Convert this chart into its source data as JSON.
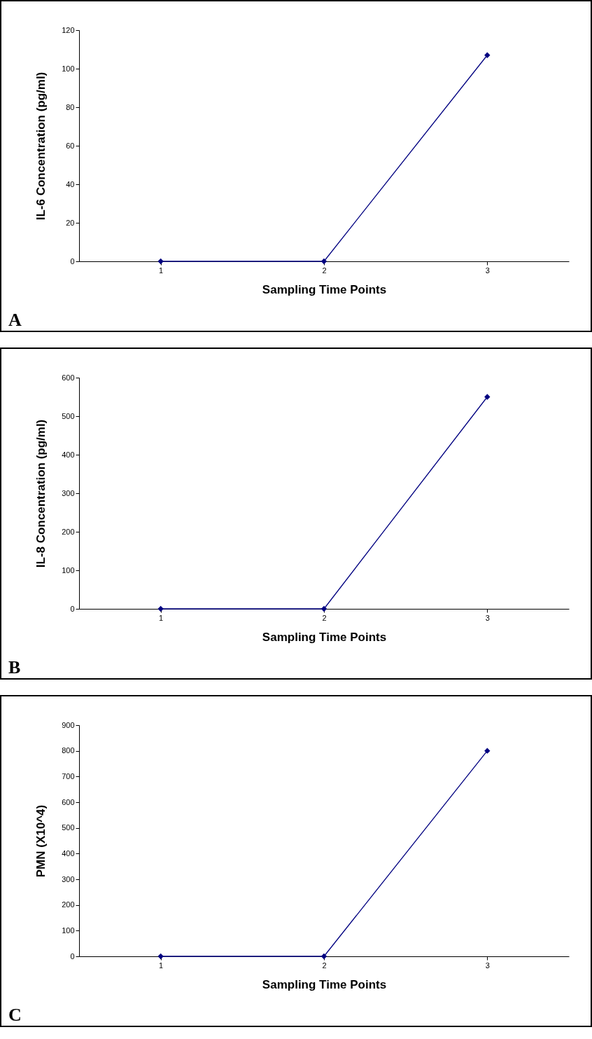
{
  "chart_data": [
    {
      "type": "line",
      "categories": [
        "1",
        "2",
        "3"
      ],
      "series": [
        {
          "color": "#000080",
          "values": [
            0,
            0,
            107
          ]
        }
      ],
      "xlabel": "Sampling Time Points",
      "ylabel": "IL-6 Concentration (pg/ml)",
      "ylim": [
        0,
        120
      ],
      "yticks": [
        0,
        20,
        40,
        60,
        80,
        100,
        120
      ],
      "marker": "diamond",
      "grid": false,
      "legend": false,
      "annotations": [
        "A"
      ]
    },
    {
      "type": "line",
      "categories": [
        "1",
        "2",
        "3"
      ],
      "series": [
        {
          "color": "#000080",
          "values": [
            0,
            0,
            550
          ]
        }
      ],
      "xlabel": "Sampling Time Points",
      "ylabel": "IL-8 Concentration (pg/ml)",
      "ylim": [
        0,
        600
      ],
      "yticks": [
        0,
        100,
        200,
        300,
        400,
        500,
        600
      ],
      "marker": "diamond",
      "grid": false,
      "legend": false,
      "annotations": [
        "B"
      ]
    },
    {
      "type": "line",
      "categories": [
        "1",
        "2",
        "3"
      ],
      "series": [
        {
          "color": "#000080",
          "values": [
            0,
            0,
            800
          ]
        }
      ],
      "xlabel": "Sampling Time Points",
      "ylabel": "PMN (X10^4)",
      "ylim": [
        0,
        900
      ],
      "yticks": [
        0,
        100,
        200,
        300,
        400,
        500,
        600,
        700,
        800,
        900
      ],
      "marker": "diamond",
      "grid": false,
      "legend": false,
      "annotations": [
        "C"
      ]
    }
  ]
}
